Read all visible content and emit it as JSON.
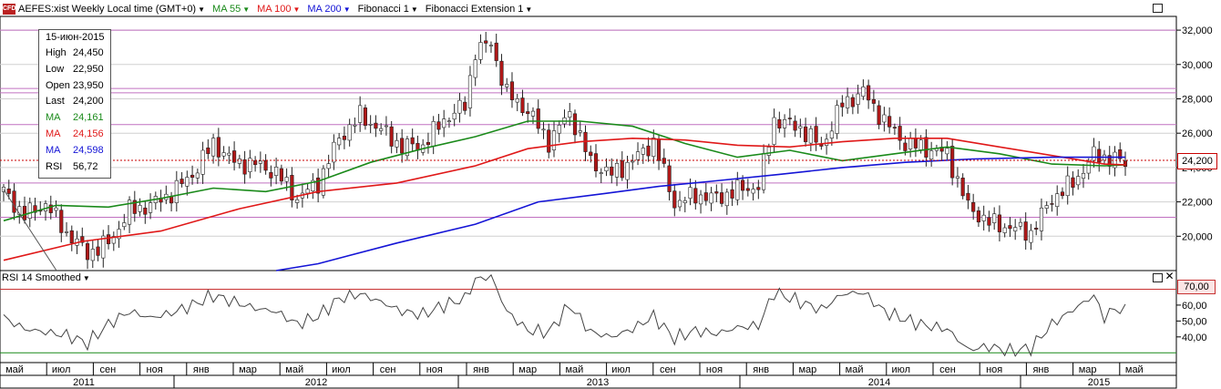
{
  "header": {
    "badge": "CFD",
    "symbol_label": "AEFES:xist Weekly Local time (GMT+0)",
    "ma55_label": "MA 55",
    "ma100_label": "MA 100",
    "ma200_label": "MA 200",
    "fib_label": "Fibonacci 1",
    "fibext_label": "Fibonacci Extension 1"
  },
  "colors": {
    "ma55": "#1a8a1a",
    "ma100": "#e01818",
    "ma200": "#1414d6",
    "bull": "#ffffff",
    "bear": "#b01818",
    "rsi_line": "#444444",
    "rsi_upper": "#c83232",
    "rsi_lower": "#1a8a1a",
    "fib_line": "#c070c0",
    "price_tag": "#c80000"
  },
  "infobox": {
    "date": "15-июн-2015",
    "rows": [
      {
        "key": "High",
        "value": "24,450",
        "color": "#000000"
      },
      {
        "key": "Low",
        "value": "22,950",
        "color": "#000000"
      },
      {
        "key": "Open",
        "value": "23,950",
        "color": "#000000"
      },
      {
        "key": "Last",
        "value": "24,200",
        "color": "#000000"
      },
      {
        "key": "MA",
        "value": "24,161",
        "color": "#1a8a1a"
      },
      {
        "key": "MA",
        "value": "24,156",
        "color": "#e01818"
      },
      {
        "key": "MA",
        "value": "24,598",
        "color": "#1414d6"
      },
      {
        "key": "RSI",
        "value": "56,72",
        "color": "#000000"
      }
    ]
  },
  "rsi_panel": {
    "title": "RSI 14 Smoothed",
    "upper_tag": "70,00",
    "upper": 70,
    "lower": 30
  },
  "price_tag": "24,200",
  "chart_data": {
    "type": "candlestick",
    "y_ticks": [
      20000,
      22000,
      24000,
      26000,
      28000,
      30000,
      32000
    ],
    "y_tick_labels": [
      "20,000",
      "22,000",
      "24,000",
      "26,000",
      "28,000",
      "30,000",
      "32,000"
    ],
    "ylim": [
      18000,
      32800
    ],
    "rsi_ylim": [
      25,
      80
    ],
    "rsi_ticks": [
      40,
      50,
      60
    ],
    "rsi_tick_labels": [
      "40,00",
      "50,00",
      "60,00"
    ],
    "fib_levels": [
      32000,
      28600,
      28350,
      26500,
      23100,
      21100
    ],
    "last_price": 24200,
    "x_month_labels": [
      "май",
      "июл",
      "сен",
      "ноя",
      "янв",
      "мар",
      "май",
      "июл",
      "сен",
      "ноя",
      "янв",
      "мар",
      "май",
      "июл",
      "сен",
      "ноя",
      "янв",
      "мар",
      "май",
      "июл",
      "сен",
      "ноя",
      "янв",
      "мар",
      "май"
    ],
    "x_years": [
      "2011",
      "2012",
      "2013",
      "2014",
      "2015"
    ],
    "weeks": 218,
    "close_path": [
      [
        0,
        22600
      ],
      [
        4,
        21200
      ],
      [
        8,
        21900
      ],
      [
        12,
        20200
      ],
      [
        16,
        19000
      ],
      [
        20,
        19600
      ],
      [
        24,
        21500
      ],
      [
        28,
        21800
      ],
      [
        32,
        22500
      ],
      [
        36,
        23600
      ],
      [
        40,
        25400
      ],
      [
        44,
        24300
      ],
      [
        48,
        24200
      ],
      [
        52,
        23700
      ],
      [
        56,
        22200
      ],
      [
        60,
        23100
      ],
      [
        64,
        25700
      ],
      [
        68,
        27000
      ],
      [
        72,
        26200
      ],
      [
        76,
        25200
      ],
      [
        80,
        25300
      ],
      [
        84,
        26800
      ],
      [
        88,
        27600
      ],
      [
        90,
        30800
      ],
      [
        93,
        31200
      ],
      [
        96,
        28300
      ],
      [
        100,
        27300
      ],
      [
        104,
        25500
      ],
      [
        108,
        27200
      ],
      [
        112,
        24300
      ],
      [
        116,
        23600
      ],
      [
        120,
        24400
      ],
      [
        124,
        25500
      ],
      [
        128,
        21900
      ],
      [
        132,
        22400
      ],
      [
        136,
        22200
      ],
      [
        140,
        22700
      ],
      [
        144,
        22900
      ],
      [
        147,
        26800
      ],
      [
        152,
        26300
      ],
      [
        156,
        25200
      ],
      [
        160,
        27700
      ],
      [
        164,
        28400
      ],
      [
        168,
        26700
      ],
      [
        172,
        25400
      ],
      [
        176,
        25100
      ],
      [
        180,
        24800
      ],
      [
        184,
        21700
      ],
      [
        188,
        20800
      ],
      [
        192,
        20500
      ],
      [
        196,
        20200
      ],
      [
        200,
        22200
      ],
      [
        204,
        23100
      ],
      [
        208,
        24700
      ],
      [
        212,
        24500
      ],
      [
        214,
        24200
      ]
    ],
    "ma55_path": [
      [
        0,
        20900
      ],
      [
        10,
        21800
      ],
      [
        20,
        21700
      ],
      [
        30,
        22200
      ],
      [
        40,
        22800
      ],
      [
        50,
        22600
      ],
      [
        60,
        23200
      ],
      [
        70,
        24300
      ],
      [
        80,
        25100
      ],
      [
        90,
        25800
      ],
      [
        100,
        26700
      ],
      [
        110,
        26700
      ],
      [
        120,
        26400
      ],
      [
        130,
        25400
      ],
      [
        140,
        24600
      ],
      [
        150,
        25000
      ],
      [
        160,
        24400
      ],
      [
        170,
        24800
      ],
      [
        180,
        25200
      ],
      [
        190,
        24800
      ],
      [
        200,
        24200
      ],
      [
        210,
        24100
      ],
      [
        214,
        24160
      ]
    ],
    "ma100_path": [
      [
        0,
        18600
      ],
      [
        15,
        19700
      ],
      [
        30,
        20300
      ],
      [
        45,
        21600
      ],
      [
        60,
        22600
      ],
      [
        75,
        23100
      ],
      [
        90,
        24100
      ],
      [
        100,
        25100
      ],
      [
        110,
        25500
      ],
      [
        120,
        25700
      ],
      [
        130,
        25600
      ],
      [
        140,
        25300
      ],
      [
        150,
        25200
      ],
      [
        160,
        25500
      ],
      [
        170,
        25700
      ],
      [
        180,
        25700
      ],
      [
        190,
        25200
      ],
      [
        200,
        24700
      ],
      [
        210,
        24200
      ],
      [
        214,
        24160
      ]
    ],
    "ma200_path": [
      [
        52,
        18000
      ],
      [
        60,
        18400
      ],
      [
        75,
        19600
      ],
      [
        90,
        20700
      ],
      [
        102,
        22000
      ],
      [
        115,
        22500
      ],
      [
        125,
        22900
      ],
      [
        135,
        23200
      ],
      [
        148,
        23600
      ],
      [
        160,
        24000
      ],
      [
        172,
        24300
      ],
      [
        185,
        24500
      ],
      [
        200,
        24600
      ],
      [
        214,
        24600
      ]
    ],
    "rsi_path": [
      [
        0,
        52
      ],
      [
        4,
        45
      ],
      [
        8,
        43
      ],
      [
        12,
        41
      ],
      [
        16,
        36
      ],
      [
        20,
        48
      ],
      [
        24,
        56
      ],
      [
        28,
        52
      ],
      [
        32,
        55
      ],
      [
        36,
        60
      ],
      [
        40,
        66
      ],
      [
        44,
        62
      ],
      [
        48,
        58
      ],
      [
        52,
        56
      ],
      [
        56,
        48
      ],
      [
        60,
        53
      ],
      [
        64,
        64
      ],
      [
        68,
        67
      ],
      [
        72,
        62
      ],
      [
        76,
        56
      ],
      [
        80,
        54
      ],
      [
        84,
        60
      ],
      [
        88,
        64
      ],
      [
        90,
        76
      ],
      [
        93,
        78
      ],
      [
        96,
        56
      ],
      [
        100,
        44
      ],
      [
        104,
        43
      ],
      [
        108,
        60
      ],
      [
        112,
        43
      ],
      [
        116,
        40
      ],
      [
        120,
        45
      ],
      [
        124,
        53
      ],
      [
        128,
        39
      ],
      [
        132,
        44
      ],
      [
        136,
        42
      ],
      [
        140,
        46
      ],
      [
        144,
        47
      ],
      [
        147,
        68
      ],
      [
        152,
        62
      ],
      [
        156,
        57
      ],
      [
        160,
        67
      ],
      [
        164,
        68
      ],
      [
        168,
        56
      ],
      [
        172,
        51
      ],
      [
        176,
        47
      ],
      [
        180,
        45
      ],
      [
        184,
        32
      ],
      [
        188,
        34
      ],
      [
        192,
        31
      ],
      [
        196,
        33
      ],
      [
        200,
        48
      ],
      [
        204,
        57
      ],
      [
        208,
        66
      ],
      [
        210,
        52
      ],
      [
        212,
        58
      ],
      [
        214,
        56
      ]
    ]
  }
}
